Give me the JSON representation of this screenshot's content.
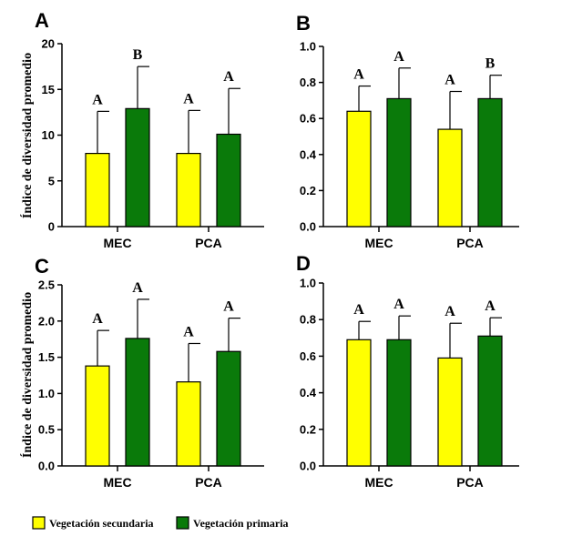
{
  "legend": {
    "items": [
      {
        "name": "Vegetación secundaria",
        "color": "#ffff00"
      },
      {
        "name": "Vegetación primaria",
        "color": "#0a7a0a"
      }
    ]
  },
  "chart_data": [
    {
      "type": "bar",
      "panel": "A",
      "categories": [
        "MEC",
        "PCA"
      ],
      "ylabel": "Índice de diversidad promedio",
      "ylim": [
        0,
        20
      ],
      "yticks": [
        "0",
        "5",
        "10",
        "15",
        "20"
      ],
      "ytick_values": [
        0,
        5,
        10,
        15,
        20
      ],
      "series": [
        {
          "name": "Vegetación secundaria",
          "values": [
            8.0,
            8.0
          ],
          "errors": [
            4.6,
            4.7
          ],
          "labels": [
            "A",
            "A"
          ]
        },
        {
          "name": "Vegetación primaria",
          "values": [
            12.9,
            10.1
          ],
          "errors": [
            4.6,
            5.0
          ],
          "labels": [
            "B",
            "A"
          ]
        }
      ]
    },
    {
      "type": "bar",
      "panel": "B",
      "categories": [
        "MEC",
        "PCA"
      ],
      "ylabel": "",
      "ylim": [
        0,
        1.0
      ],
      "yticks": [
        "0.0",
        "0.2",
        "0.4",
        "0.6",
        "0.8",
        "1.0"
      ],
      "ytick_values": [
        0,
        0.2,
        0.4,
        0.6,
        0.8,
        1.0
      ],
      "series": [
        {
          "name": "Vegetación secundaria",
          "values": [
            0.64,
            0.54
          ],
          "errors": [
            0.14,
            0.21
          ],
          "labels": [
            "A",
            "A"
          ]
        },
        {
          "name": "Vegetación primaria",
          "values": [
            0.71,
            0.71
          ],
          "errors": [
            0.17,
            0.13
          ],
          "labels": [
            "A",
            "B"
          ]
        }
      ]
    },
    {
      "type": "bar",
      "panel": "C",
      "categories": [
        "MEC",
        "PCA"
      ],
      "ylabel": "Índice de diversidad promedio",
      "ylim": [
        0,
        2.5
      ],
      "yticks": [
        "0.0",
        "0.5",
        "1.0",
        "1.5",
        "2.0",
        "2.5"
      ],
      "ytick_values": [
        0,
        0.5,
        1.0,
        1.5,
        2.0,
        2.5
      ],
      "series": [
        {
          "name": "Vegetación secundaria",
          "values": [
            1.38,
            1.16
          ],
          "errors": [
            0.49,
            0.53
          ],
          "labels": [
            "A",
            "A"
          ]
        },
        {
          "name": "Vegetación primaria",
          "values": [
            1.76,
            1.58
          ],
          "errors": [
            0.54,
            0.46
          ],
          "labels": [
            "A",
            "A"
          ]
        }
      ]
    },
    {
      "type": "bar",
      "panel": "D",
      "categories": [
        "MEC",
        "PCA"
      ],
      "ylabel": "",
      "ylim": [
        0,
        1.0
      ],
      "yticks": [
        "0.0",
        "0.2",
        "0.4",
        "0.6",
        "0.8",
        "1.0"
      ],
      "ytick_values": [
        0,
        0.2,
        0.4,
        0.6,
        0.8,
        1.0
      ],
      "series": [
        {
          "name": "Vegetación secundaria",
          "values": [
            0.69,
            0.59
          ],
          "errors": [
            0.1,
            0.19
          ],
          "labels": [
            "A",
            "A"
          ]
        },
        {
          "name": "Vegetación primaria",
          "values": [
            0.69,
            0.71
          ],
          "errors": [
            0.13,
            0.1
          ],
          "labels": [
            "A",
            "A"
          ]
        }
      ]
    }
  ]
}
